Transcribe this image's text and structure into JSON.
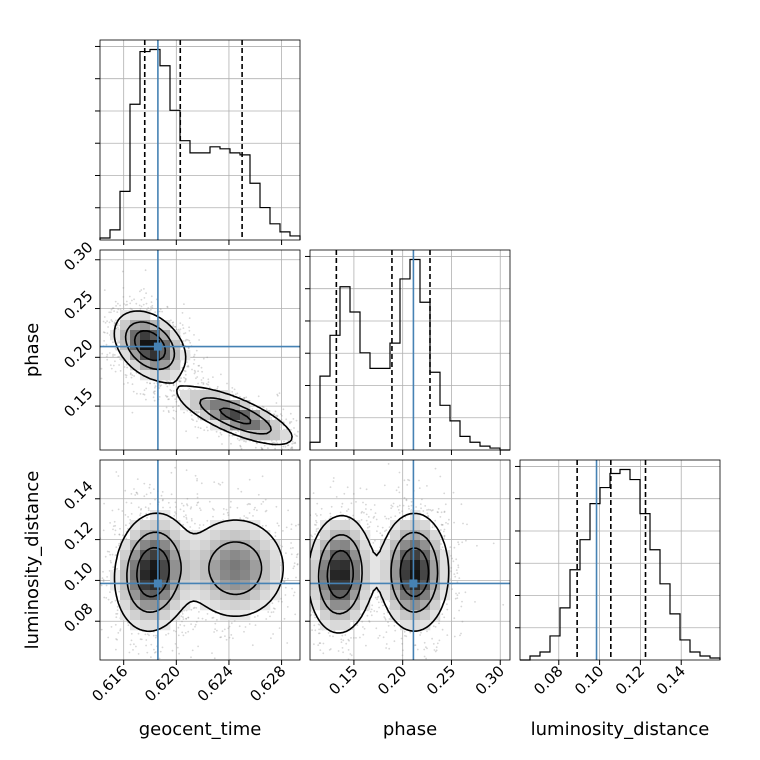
{
  "chart_data": {
    "type": "corner",
    "parameters": [
      "geocent_time",
      "phase",
      "luminosity_distance"
    ],
    "truths": {
      "geocent_time": 0.6186,
      "phase": 0.211,
      "luminosity_distance": 0.0985
    },
    "truth_color": "#4682b4",
    "quantiles": {
      "geocent_time": [
        0.6176,
        0.6203,
        0.625
      ],
      "phase": [
        0.132,
        0.189,
        0.228
      ],
      "luminosity_distance": [
        0.089,
        0.1055,
        0.1225
      ]
    },
    "ranges": {
      "geocent_time": [
        0.6142,
        0.6294
      ],
      "phase": [
        0.105,
        0.31
      ],
      "luminosity_distance": [
        0.061,
        0.159
      ]
    },
    "ticks": {
      "geocent_time": [
        0.616,
        0.62,
        0.624,
        0.628
      ],
      "phase": [
        0.15,
        0.2,
        0.25,
        0.3
      ],
      "luminosity_distance": [
        0.08,
        0.1,
        0.12,
        0.14
      ]
    },
    "tick_labels": {
      "geocent_time": [
        "0.616",
        "0.620",
        "0.624",
        "0.628"
      ],
      "phase": [
        "0.15",
        "0.20",
        "0.25",
        "0.30"
      ],
      "luminosity_distance": [
        "0.08",
        "0.10",
        "0.12",
        "0.14"
      ]
    },
    "histograms": {
      "geocent_time": [
        0.01,
        0.05,
        0.24,
        0.67,
        0.93,
        0.94,
        0.86,
        0.64,
        0.49,
        0.43,
        0.43,
        0.46,
        0.45,
        0.43,
        0.42,
        0.28,
        0.16,
        0.08,
        0.04,
        0.02
      ],
      "phase": [
        0.04,
        0.38,
        0.59,
        0.84,
        0.71,
        0.5,
        0.42,
        0.42,
        0.55,
        0.88,
        0.98,
        0.76,
        0.4,
        0.23,
        0.15,
        0.07,
        0.04,
        0.02,
        0.01,
        0.0
      ],
      "luminosity_distance": [
        0.0,
        0.02,
        0.04,
        0.12,
        0.26,
        0.45,
        0.6,
        0.78,
        0.86,
        0.93,
        0.95,
        0.9,
        0.73,
        0.55,
        0.38,
        0.23,
        0.1,
        0.04,
        0.02,
        0.01
      ]
    },
    "xlabels": [
      "geocent_time",
      "phase",
      "luminosity_distance"
    ],
    "ylabels": [
      "",
      "phase",
      "luminosity_distance"
    ],
    "grid": true
  }
}
